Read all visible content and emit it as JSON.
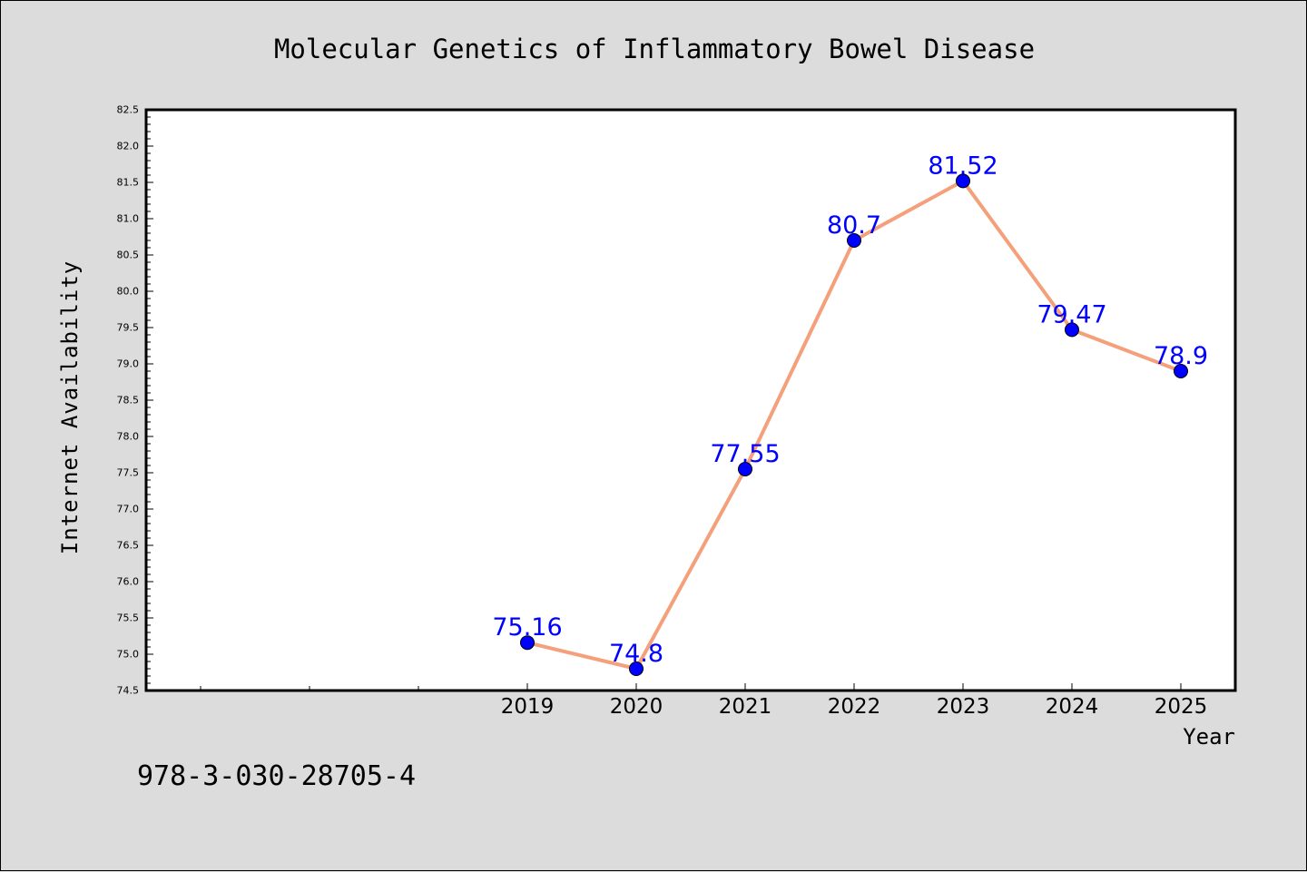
{
  "chart_data": {
    "type": "line",
    "title": "Molecular Genetics of Inflammatory Bowel Disease",
    "xlabel": "Year",
    "ylabel": "Internet Availability",
    "categories": [
      "2019",
      "2020",
      "2021",
      "2022",
      "2023",
      "2024",
      "2025"
    ],
    "values": [
      75.16,
      74.8,
      77.55,
      80.7,
      81.52,
      79.47,
      78.9
    ],
    "point_labels": [
      "75.16",
      "74.8",
      "77.55",
      "80.7",
      "81.52",
      "79.47",
      "78.9"
    ],
    "ylim": [
      74.5,
      82.5
    ],
    "y_ticks": [
      "74.5",
      "75.0",
      "75.5",
      "76.0",
      "76.5",
      "77.0",
      "77.5",
      "78.0",
      "78.5",
      "79.0",
      "79.5",
      "80.0",
      "80.5",
      "81.0",
      "81.5",
      "82.0",
      "82.5"
    ],
    "grid": false,
    "colors": {
      "line": "#f4a07a",
      "marker": "#0000ff",
      "label": "#0000ff",
      "background": "#dcdcdc",
      "plot_background": "#ffffff"
    }
  },
  "footer": {
    "isbn": "978-3-030-28705-4"
  }
}
